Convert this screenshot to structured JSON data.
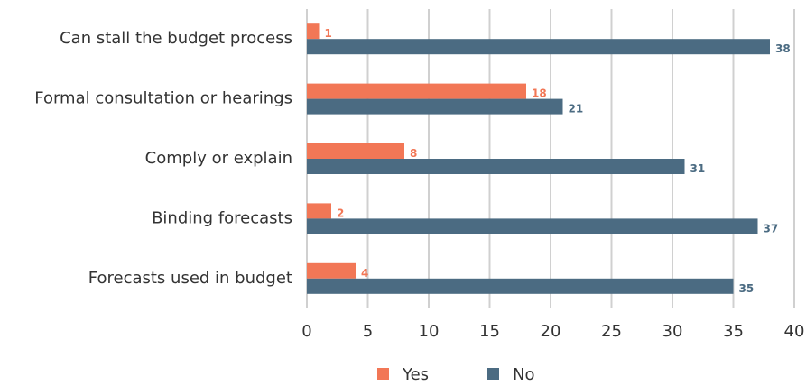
{
  "chart_data": {
    "type": "bar",
    "orientation": "horizontal",
    "categories": [
      "Can stall the budget process",
      "Formal consultation or hearings",
      "Comply or explain",
      "Binding forecasts",
      "Forecasts used in budget"
    ],
    "series": [
      {
        "name": "Yes",
        "color": "#f27756",
        "values": [
          1,
          18,
          8,
          2,
          4
        ]
      },
      {
        "name": "No",
        "color": "#4b6b82",
        "values": [
          38,
          21,
          31,
          37,
          35
        ]
      }
    ],
    "xlim": [
      0,
      40
    ],
    "xticks": [
      0,
      5,
      10,
      15,
      20,
      25,
      30,
      35,
      40
    ],
    "grid": true,
    "legend": "bottom"
  }
}
